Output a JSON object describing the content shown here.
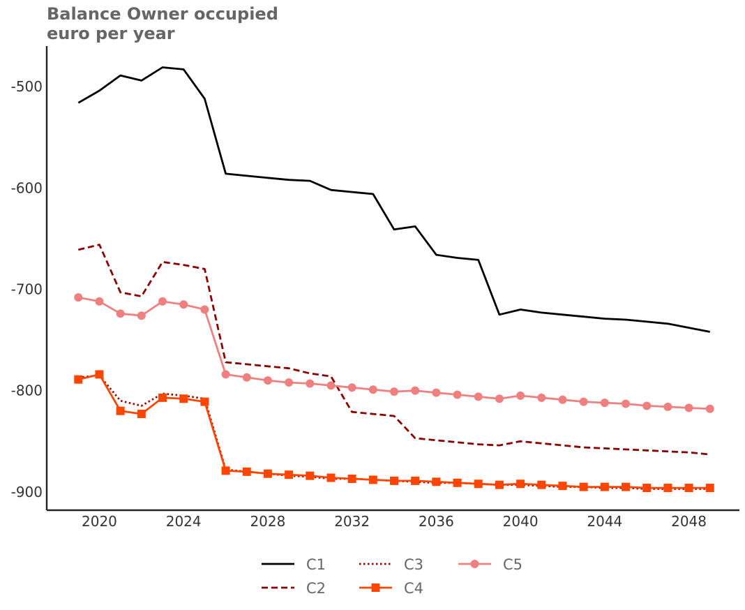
{
  "chart_data": {
    "type": "line",
    "title_line1": "Balance Owner occupied",
    "title_line2": "euro per year",
    "xlabel": "",
    "ylabel": "",
    "xlim": [
      2017.5,
      2050.4
    ],
    "ylim": [
      -918,
      -460
    ],
    "x_ticks": [
      2020,
      2024,
      2028,
      2032,
      2036,
      2040,
      2044,
      2048
    ],
    "y_ticks": [
      -500,
      -600,
      -700,
      -800,
      -900
    ],
    "grid": false,
    "legend_position": "bottom-center",
    "x": [
      2019,
      2020,
      2021,
      2022,
      2023,
      2024,
      2025,
      2026,
      2027,
      2028,
      2029,
      2030,
      2031,
      2032,
      2033,
      2034,
      2035,
      2036,
      2037,
      2038,
      2039,
      2040,
      2041,
      2042,
      2043,
      2044,
      2045,
      2046,
      2047,
      2048,
      2049
    ],
    "series": [
      {
        "name": "C1",
        "color": "#000000",
        "dash": "solid",
        "marker": "none",
        "values": [
          -516,
          -504,
          -489,
          -494,
          -481,
          -483,
          -512,
          -586,
          -588,
          -590,
          -592,
          -593,
          -602,
          -604,
          -606,
          -641,
          -638,
          -666,
          -669,
          -671,
          -725,
          -720,
          -723,
          -725,
          -727,
          -729,
          -730,
          -732,
          -734,
          -738,
          -742
        ]
      },
      {
        "name": "C2",
        "color": "#8b0000",
        "dash": "dashed",
        "marker": "none",
        "values": [
          -661,
          -656,
          -703,
          -707,
          -673,
          -676,
          -680,
          -772,
          -774,
          -776,
          -778,
          -783,
          -786,
          -821,
          -823,
          -825,
          -847,
          -849,
          -851,
          -853,
          -854,
          -850,
          -852,
          -854,
          -856,
          -857,
          -858,
          -859,
          -860,
          -861,
          -863
        ]
      },
      {
        "name": "C3",
        "color": "#a00000",
        "dash": "dotted",
        "marker": "none",
        "values": [
          -787,
          -785,
          -810,
          -815,
          -803,
          -805,
          -808,
          -878,
          -880,
          -882,
          -884,
          -885,
          -887,
          -887,
          -888,
          -889,
          -890,
          -891,
          -891,
          -892,
          -893,
          -893,
          -894,
          -895,
          -895,
          -896,
          -896,
          -897,
          -897,
          -897,
          -897
        ]
      },
      {
        "name": "C4",
        "color": "#ff4500",
        "dash": "solid",
        "marker": "square",
        "values": [
          -789,
          -784,
          -820,
          -823,
          -807,
          -808,
          -811,
          -879,
          -880,
          -882,
          -883,
          -884,
          -886,
          -887,
          -888,
          -889,
          -889,
          -890,
          -891,
          -892,
          -893,
          -892,
          -893,
          -894,
          -895,
          -895,
          -895,
          -896,
          -896,
          -896,
          -896
        ]
      },
      {
        "name": "C5",
        "color": "#f08080",
        "dash": "solid",
        "marker": "circle",
        "values": [
          -708,
          -712,
          -724,
          -726,
          -712,
          -715,
          -720,
          -784,
          -787,
          -790,
          -792,
          -793,
          -795,
          -797,
          -799,
          -801,
          -800,
          -802,
          -804,
          -806,
          -808,
          -805,
          -807,
          -809,
          -811,
          -812,
          -813,
          -815,
          -816,
          -817,
          -818
        ]
      }
    ]
  }
}
